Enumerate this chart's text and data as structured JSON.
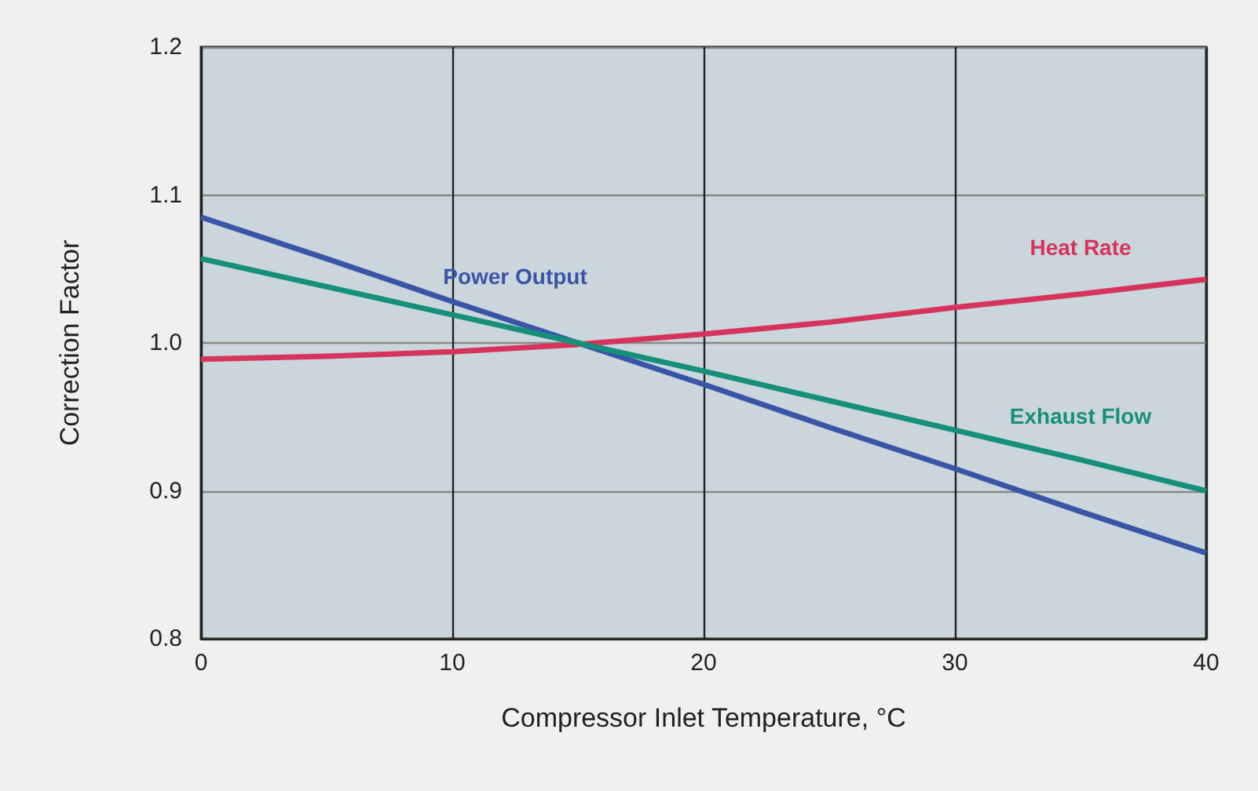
{
  "chart_data": {
    "type": "line",
    "xlabel": "Compressor Inlet Temperature, °C",
    "ylabel": "Correction Factor",
    "xlim": [
      0,
      40
    ],
    "xticks": [
      0,
      10,
      20,
      30,
      40
    ],
    "ylim": [
      0.8,
      1.2
    ],
    "yticks": [
      0.8,
      0.9,
      {
        "value": 1,
        "label": "1.0"
      },
      1.1,
      1.2
    ],
    "grid": true,
    "legend": false,
    "marker": "none",
    "line_style": "solid",
    "series": [
      {
        "name": "Power Output",
        "color": "#3a55a8",
        "x": [
          0,
          5,
          10,
          15,
          20,
          25,
          30,
          35,
          40
        ],
        "values": [
          1.085,
          1.057,
          1.028,
          1.0,
          0.972,
          0.943,
          0.915,
          0.886,
          0.858
        ]
      },
      {
        "name": "Heat Rate",
        "color": "#d6345c",
        "x": [
          0,
          5,
          10,
          15,
          20,
          25,
          30,
          35,
          40
        ],
        "values": [
          0.989,
          0.991,
          0.994,
          0.999,
          1.006,
          1.014,
          1.024,
          1.033,
          1.043
        ]
      },
      {
        "name": "Exhaust Flow",
        "color": "#16907a",
        "x": [
          0,
          5,
          10,
          15,
          20,
          25,
          30,
          35,
          40
        ],
        "values": [
          1.057,
          1.038,
          1.019,
          1.0,
          0.981,
          0.961,
          0.941,
          0.921,
          0.9
        ]
      }
    ]
  }
}
